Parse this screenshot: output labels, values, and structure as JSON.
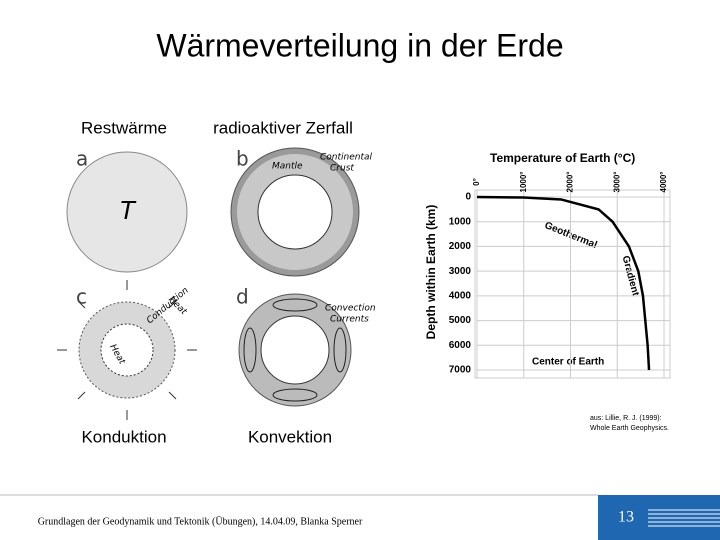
{
  "slide": {
    "title": "Wärmeverteilung in der Erde",
    "labels": {
      "top_left": "Restwärme",
      "top_right": "radioaktiver Zerfall",
      "bottom_left": "Konduktion",
      "bottom_right": "Konvektion"
    },
    "diagrams": {
      "a": {
        "letter": "a",
        "symbol": "T"
      },
      "b": {
        "letter": "b",
        "mantle": "Mantle",
        "crust": [
          "Continental",
          "Crust"
        ]
      },
      "c": {
        "letter": "c",
        "conduction": "Conduction",
        "heat": "Heat",
        "heat_outer": "Heat"
      },
      "d": {
        "letter": "d",
        "currents": [
          "Convection",
          "Currents"
        ]
      }
    },
    "source": [
      "aus: Lillie, R. J. (1999):",
      "Whole Earth Geophysics."
    ],
    "footer": "Grundlagen der Geodynamik und Tektonik (Übungen), 14.04.09, Blanka Sperner",
    "page_number": "13"
  },
  "chart_data": {
    "type": "line",
    "title": "Temperature of Earth (°C)",
    "y_label": "Depth within Earth (km)",
    "x": [
      0,
      1000,
      1800,
      2600,
      2900,
      3250,
      3450,
      3550,
      3600,
      3650,
      3680
    ],
    "values": [
      0,
      20,
      100,
      500,
      1000,
      2000,
      3000,
      4000,
      5000,
      6000,
      7000
    ],
    "color": "#000000",
    "xlim": [
      0,
      4000
    ],
    "ylim": [
      0,
      7000
    ],
    "y_inverted": true,
    "x_axis_top": true,
    "grid": true,
    "xticks": [
      {
        "value": 0,
        "label": "0°"
      },
      {
        "value": 1000,
        "label": "1000°"
      },
      {
        "value": 2000,
        "label": "2000°"
      },
      {
        "value": 3000,
        "label": "3000°"
      },
      {
        "value": 4000,
        "label": "4000°"
      }
    ],
    "yticks": [
      0,
      1000,
      2000,
      3000,
      4000,
      5000,
      6000,
      7000
    ],
    "annotations": [
      "Geothermal",
      "Gradient",
      "Center of Earth"
    ]
  }
}
